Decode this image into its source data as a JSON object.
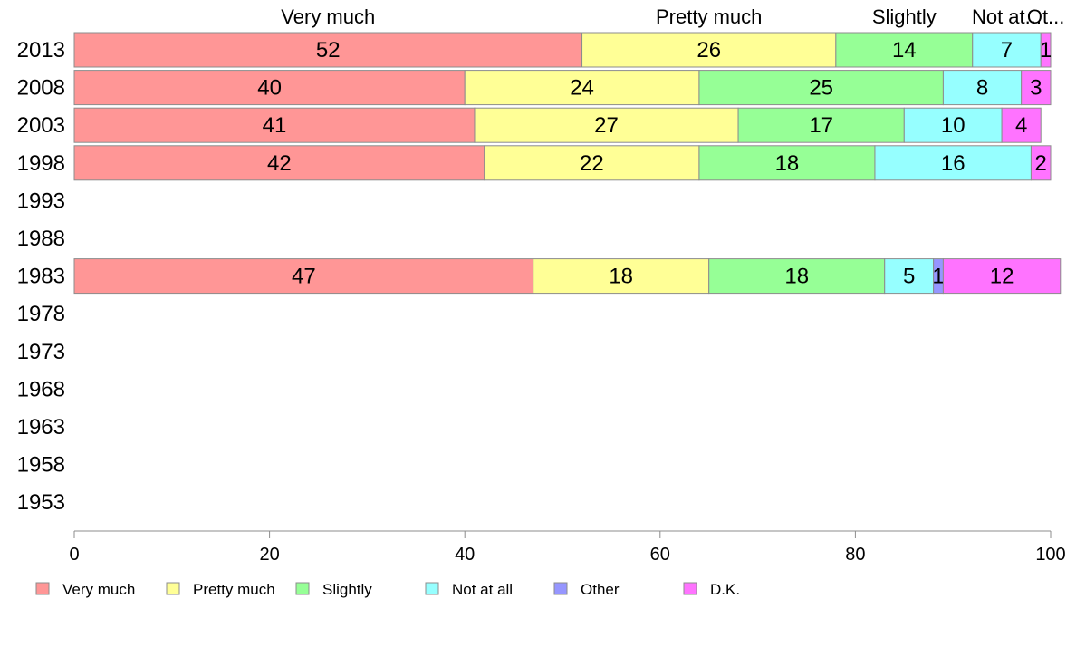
{
  "chart_data": {
    "type": "bar",
    "orientation": "horizontal",
    "stacked": true,
    "categories": [
      "2013",
      "2008",
      "2003",
      "1998",
      "1993",
      "1988",
      "1983",
      "1978",
      "1973",
      "1968",
      "1963",
      "1958",
      "1953"
    ],
    "series": [
      {
        "name": "Very much",
        "color": "#ff9696",
        "values": [
          52,
          40,
          41,
          42,
          null,
          null,
          47,
          null,
          null,
          null,
          null,
          null,
          null
        ]
      },
      {
        "name": "Pretty much",
        "color": "#ffff96",
        "values": [
          26,
          24,
          27,
          22,
          null,
          null,
          18,
          null,
          null,
          null,
          null,
          null,
          null
        ]
      },
      {
        "name": "Slightly",
        "color": "#96ff96",
        "values": [
          14,
          25,
          17,
          18,
          null,
          null,
          18,
          null,
          null,
          null,
          null,
          null,
          null
        ]
      },
      {
        "name": "Not at all",
        "color": "#96ffff",
        "values": [
          7,
          8,
          10,
          16,
          null,
          null,
          5,
          null,
          null,
          null,
          null,
          null,
          null
        ]
      },
      {
        "name": "Other",
        "color": "#9696ff",
        "values": [
          0,
          0,
          0,
          0,
          null,
          null,
          1,
          null,
          null,
          null,
          null,
          null,
          null
        ]
      },
      {
        "name": "D.K.",
        "color": "#ff73ff",
        "values": [
          1,
          3,
          4,
          2,
          null,
          null,
          12,
          null,
          null,
          null,
          null,
          null,
          null
        ]
      }
    ],
    "top_labels": [
      "Very much",
      "Pretty much",
      "Slightly",
      "Not at...",
      "Ot..."
    ],
    "xlim": [
      0,
      100
    ],
    "xticks": [
      0,
      20,
      40,
      60,
      80,
      100
    ],
    "grid": false,
    "legend_position": "bottom"
  }
}
